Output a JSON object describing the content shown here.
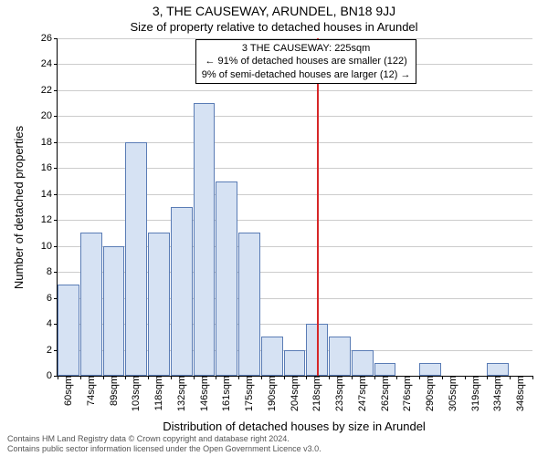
{
  "title": "3, THE CAUSEWAY, ARUNDEL, BN18 9JJ",
  "subtitle": "Size of property relative to detached houses in Arundel",
  "ylabel": "Number of detached properties",
  "xlabel": "Distribution of detached houses by size in Arundel",
  "attribution_line1": "Contains HM Land Registry data © Crown copyright and database right 2024.",
  "attribution_line2": "Contains public sector information licensed under the Open Government Licence v3.0.",
  "annotation": {
    "line1": "3 THE CAUSEWAY: 225sqm",
    "line2": "← 91% of detached houses are smaller (122)",
    "line3": "9% of semi-detached houses are larger (12) →"
  },
  "chart": {
    "type": "histogram",
    "ylim": [
      0,
      26
    ],
    "ytick_step": 2,
    "ref_value_x": 225,
    "ref_color": "#d62728",
    "bar_fill": "#d6e2f3",
    "bar_border": "#5a7cb5",
    "grid_color": "#cccccc",
    "background_color": "#ffffff",
    "title_fontsize": 14,
    "subtitle_fontsize": 13,
    "label_fontsize": 13,
    "tick_fontsize": 11,
    "x_start": 60,
    "x_bin_width": 14.4,
    "bins": [
      {
        "label": "60sqm",
        "value": 7
      },
      {
        "label": "74sqm",
        "value": 11
      },
      {
        "label": "89sqm",
        "value": 10
      },
      {
        "label": "103sqm",
        "value": 18
      },
      {
        "label": "118sqm",
        "value": 11
      },
      {
        "label": "132sqm",
        "value": 13
      },
      {
        "label": "146sqm",
        "value": 21
      },
      {
        "label": "161sqm",
        "value": 15
      },
      {
        "label": "175sqm",
        "value": 11
      },
      {
        "label": "190sqm",
        "value": 3
      },
      {
        "label": "204sqm",
        "value": 2
      },
      {
        "label": "218sqm",
        "value": 4
      },
      {
        "label": "233sqm",
        "value": 3
      },
      {
        "label": "247sqm",
        "value": 2
      },
      {
        "label": "262sqm",
        "value": 1
      },
      {
        "label": "276sqm",
        "value": 0
      },
      {
        "label": "290sqm",
        "value": 1
      },
      {
        "label": "305sqm",
        "value": 0
      },
      {
        "label": "319sqm",
        "value": 0
      },
      {
        "label": "334sqm",
        "value": 1
      },
      {
        "label": "348sqm",
        "value": 0
      }
    ]
  }
}
